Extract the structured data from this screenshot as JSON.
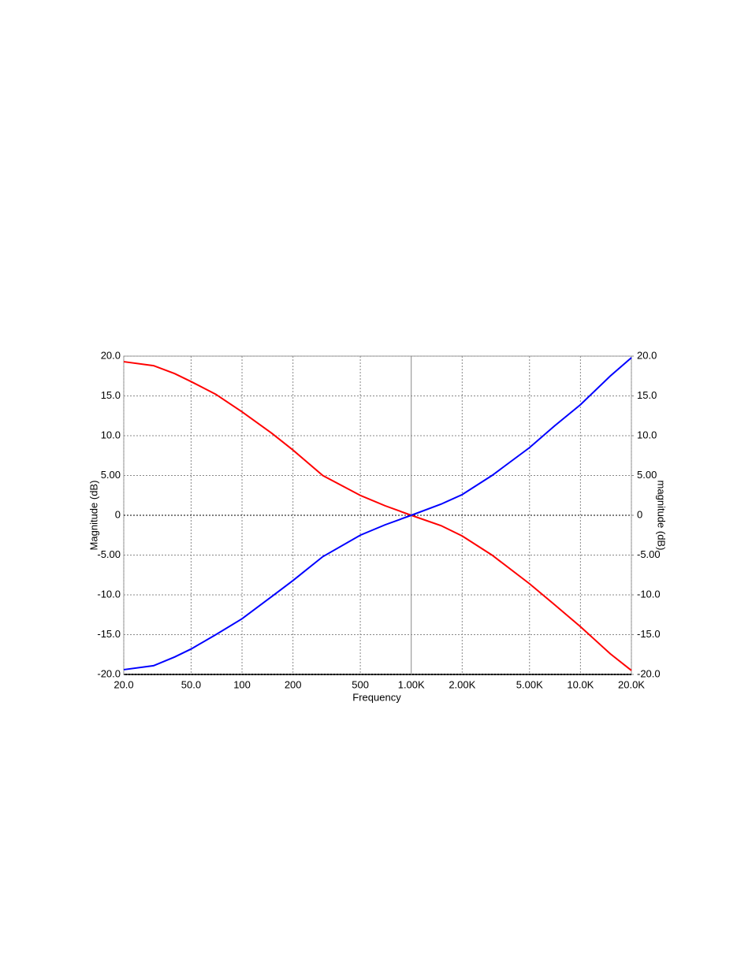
{
  "chart_data": {
    "type": "line",
    "x_label": "Frequency",
    "y_label": "Magnitude  (dB)",
    "y2_label": "magnitude (dB)",
    "x_scale": "log",
    "grid": true,
    "xlim": [
      20,
      20000
    ],
    "xticks": [
      {
        "value": 20,
        "label": "20.0"
      },
      {
        "value": 50,
        "label": "50.0"
      },
      100,
      200,
      500,
      {
        "value": 1000,
        "label": "1.00K"
      },
      {
        "value": 2000,
        "label": "2.00K"
      },
      {
        "value": 5000,
        "label": "5.00K"
      },
      {
        "value": 10000,
        "label": "10.0K"
      },
      {
        "value": 20000,
        "label": "20.0K"
      }
    ],
    "ylim": [
      -20,
      20
    ],
    "yticks": [
      {
        "value": -20,
        "label": "-20.0"
      },
      {
        "value": -15,
        "label": "-15.0"
      },
      {
        "value": -10,
        "label": "-10.0"
      },
      {
        "value": -5,
        "label": "-5.00"
      },
      0,
      {
        "value": 5,
        "label": "5.00"
      },
      {
        "value": 10,
        "label": "10.0"
      },
      {
        "value": 15,
        "label": "15.0"
      },
      {
        "value": 20,
        "label": "20.0"
      }
    ],
    "y2lim": [
      -20,
      20
    ],
    "y2ticks": [
      {
        "value": -20,
        "label": "-20.0"
      },
      {
        "value": -15,
        "label": "-15.0"
      },
      {
        "value": -10,
        "label": "-10.0"
      },
      {
        "value": -5,
        "label": "-5.00"
      },
      0,
      {
        "value": 5,
        "label": "5.00"
      },
      {
        "value": 10,
        "label": "10.0"
      },
      {
        "value": 15,
        "label": "15.0"
      },
      {
        "value": 20,
        "label": "20.0"
      }
    ],
    "x": [
      20,
      30,
      40,
      50,
      70,
      100,
      150,
      200,
      300,
      500,
      700,
      1000,
      1500,
      2000,
      3000,
      5000,
      7000,
      10000,
      15000,
      20000
    ],
    "series": [
      {
        "color": "#ff0000",
        "values": [
          19.3,
          18.8,
          17.8,
          16.8,
          15.2,
          13.0,
          10.3,
          8.2,
          5.0,
          2.5,
          1.2,
          0,
          -1.3,
          -2.6,
          -5.0,
          -8.6,
          -11.2,
          -14.0,
          -17.4,
          -19.5
        ]
      },
      {
        "color": "#0000ff",
        "values": [
          -19.4,
          -18.9,
          -17.8,
          -16.8,
          -15.0,
          -13.0,
          -10.2,
          -8.2,
          -5.2,
          -2.5,
          -1.2,
          0,
          1.4,
          2.6,
          5.0,
          8.5,
          11.2,
          13.9,
          17.5,
          19.8
        ]
      }
    ]
  }
}
